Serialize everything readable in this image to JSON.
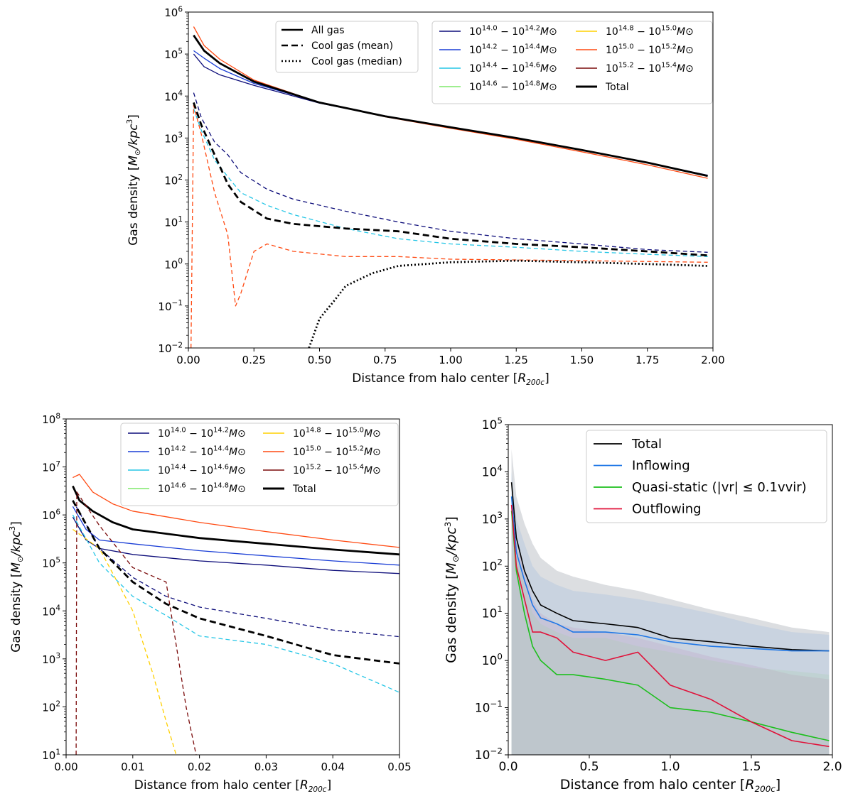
{
  "chart_data": [
    {
      "type": "line",
      "title": "",
      "xlabel": "Distance from halo center [R200c]",
      "ylabel": "Gas density [M⊙/kpc³]",
      "xlim": [
        0.0,
        2.0
      ],
      "ylim": [
        0.01,
        1000000
      ],
      "yscale": "log",
      "xticks": [
        "0.00",
        "0.25",
        "0.50",
        "0.75",
        "1.00",
        "1.25",
        "1.50",
        "1.75",
        "2.00"
      ],
      "yticks": [
        "10−2",
        "10−1",
        "100",
        "101",
        "102",
        "103",
        "104",
        "105",
        "106"
      ],
      "style_legend": [
        {
          "label": "All gas",
          "dash": "solid"
        },
        {
          "label": "Cool gas (mean)",
          "dash": "dashed"
        },
        {
          "label": "Cool gas (median)",
          "dash": "dotted"
        }
      ],
      "legend": [
        {
          "label": "10^14.0 − 10^14.2 M⊙",
          "color": "#0d0d7a"
        },
        {
          "label": "10^14.2 − 10^14.4 M⊙",
          "color": "#1a3ed6"
        },
        {
          "label": "10^14.4 − 10^14.6 M⊙",
          "color": "#25c6e6"
        },
        {
          "label": "10^14.6 − 10^14.8 M⊙",
          "color": "#7fe86a"
        },
        {
          "label": "10^14.8 − 10^15.0 M⊙",
          "color": "#ffd000"
        },
        {
          "label": "10^15.0 − 10^15.2 M⊙",
          "color": "#ff4a12"
        },
        {
          "label": "10^15.2 − 10^15.4 M⊙",
          "color": "#7a0a0a"
        },
        {
          "label": "Total",
          "color": "#000000",
          "thick": true
        }
      ],
      "series": [
        {
          "name": "all 14.0-14.2",
          "color": "#0d0d7a",
          "dash": "solid",
          "x": [
            0.02,
            0.06,
            0.12,
            0.25,
            0.5,
            0.75,
            1.0,
            1.25,
            1.5,
            1.75,
            1.98
          ],
          "y": [
            100000,
            50000,
            32000,
            18000,
            6800,
            3300,
            1800,
            1000,
            520,
            260,
            130
          ]
        },
        {
          "name": "all 14.2-14.4",
          "color": "#1a3ed6",
          "dash": "solid",
          "x": [
            0.02,
            0.06,
            0.12,
            0.25,
            0.5,
            0.75,
            1.0,
            1.25,
            1.5,
            1.75,
            1.98
          ],
          "y": [
            120000,
            80000,
            45000,
            20000,
            7000,
            3300,
            1800,
            1000,
            520,
            260,
            125
          ]
        },
        {
          "name": "all 15.0-15.2",
          "color": "#ff4a12",
          "dash": "solid",
          "x": [
            0.02,
            0.06,
            0.12,
            0.25,
            0.5,
            0.75,
            1.0,
            1.25,
            1.5,
            1.75,
            1.98
          ],
          "y": [
            450000,
            160000,
            75000,
            24000,
            7000,
            3200,
            1700,
            930,
            470,
            230,
            110
          ]
        },
        {
          "name": "all total",
          "color": "#000000",
          "dash": "solid",
          "thick": true,
          "x": [
            0.02,
            0.06,
            0.12,
            0.25,
            0.5,
            0.75,
            1.0,
            1.25,
            1.5,
            1.75,
            1.98
          ],
          "y": [
            280000,
            120000,
            60000,
            22000,
            7000,
            3300,
            1800,
            1000,
            520,
            260,
            125
          ]
        },
        {
          "name": "cool mean 14.0-14.2",
          "color": "#0d0d7a",
          "dash": "dashed",
          "x": [
            0.02,
            0.05,
            0.1,
            0.15,
            0.2,
            0.3,
            0.4,
            0.6,
            0.8,
            1.0,
            1.25,
            1.5,
            1.75,
            1.98
          ],
          "y": [
            12000,
            3000,
            800,
            400,
            150,
            60,
            35,
            18,
            10,
            6,
            4,
            3,
            2.2,
            1.9
          ]
        },
        {
          "name": "cool mean 14.4-14.6",
          "color": "#25c6e6",
          "dash": "dashed",
          "x": [
            0.02,
            0.05,
            0.1,
            0.15,
            0.2,
            0.3,
            0.4,
            0.6,
            0.8,
            1.0,
            1.25,
            1.5,
            1.75,
            1.98
          ],
          "y": [
            5000,
            1500,
            300,
            120,
            50,
            25,
            15,
            7,
            4,
            3,
            2.5,
            2,
            1.7,
            1.5
          ]
        },
        {
          "name": "cool mean 15.0-15.2",
          "color": "#ff4a12",
          "dash": "dashed",
          "x": [
            0.01,
            0.02,
            0.05,
            0.1,
            0.15,
            0.18,
            0.2,
            0.25,
            0.3,
            0.4,
            0.6,
            0.8,
            1.0,
            1.5,
            1.98
          ],
          "y": [
            0.01,
            6000,
            1200,
            50,
            5,
            0.1,
            0.2,
            2,
            3,
            2,
            1.5,
            1.5,
            1.3,
            1.2,
            1.1
          ]
        },
        {
          "name": "cool mean total",
          "color": "#000000",
          "dash": "dashed",
          "thick": true,
          "x": [
            0.02,
            0.05,
            0.1,
            0.15,
            0.2,
            0.3,
            0.4,
            0.6,
            0.8,
            1.0,
            1.25,
            1.5,
            1.75,
            1.98
          ],
          "y": [
            7000,
            2000,
            400,
            80,
            30,
            12,
            9,
            7,
            6,
            4,
            3,
            2.5,
            2,
            1.6
          ]
        },
        {
          "name": "cool median total",
          "color": "#000000",
          "dash": "dotted",
          "thick": true,
          "x": [
            0.46,
            0.5,
            0.55,
            0.6,
            0.7,
            0.8,
            1.0,
            1.25,
            1.5,
            1.75,
            1.98
          ],
          "y": [
            0.01,
            0.05,
            0.12,
            0.3,
            0.6,
            0.9,
            1.1,
            1.2,
            1.1,
            1.0,
            0.9
          ]
        }
      ]
    },
    {
      "type": "line",
      "title": "",
      "xlabel": "Distance from halo center [R200c]",
      "ylabel": "Gas density [M⊙/kpc³]",
      "xlim": [
        0.0,
        0.05
      ],
      "ylim": [
        10,
        100000000
      ],
      "yscale": "log",
      "xticks": [
        "0.00",
        "0.01",
        "0.02",
        "0.03",
        "0.04",
        "0.05"
      ],
      "yticks": [
        "101",
        "102",
        "103",
        "104",
        "105",
        "106",
        "107",
        "108"
      ],
      "legend": [
        {
          "label": "10^14.0 − 10^14.2 M⊙",
          "color": "#0d0d7a"
        },
        {
          "label": "10^14.2 − 10^14.4 M⊙",
          "color": "#1a3ed6"
        },
        {
          "label": "10^14.4 − 10^14.6 M⊙",
          "color": "#25c6e6"
        },
        {
          "label": "10^14.6 − 10^14.8 M⊙",
          "color": "#7fe86a"
        },
        {
          "label": "10^14.8 − 10^15.0 M⊙",
          "color": "#ffd000"
        },
        {
          "label": "10^15.0 − 10^15.2 M⊙",
          "color": "#ff4a12"
        },
        {
          "label": "10^15.2 − 10^15.4 M⊙",
          "color": "#7a0a0a"
        },
        {
          "label": "Total",
          "color": "#000000",
          "thick": true
        }
      ],
      "series": [
        {
          "name": "all 15.0-15.2",
          "color": "#ff4a12",
          "dash": "solid",
          "x": [
            0.001,
            0.002,
            0.004,
            0.007,
            0.01,
            0.02,
            0.03,
            0.04,
            0.05
          ],
          "y": [
            6000000,
            7000000,
            3000000,
            1700000,
            1200000,
            700000,
            450000,
            300000,
            210000
          ]
        },
        {
          "name": "all total",
          "color": "#000000",
          "dash": "solid",
          "thick": true,
          "x": [
            0.001,
            0.002,
            0.004,
            0.007,
            0.01,
            0.02,
            0.03,
            0.04,
            0.05
          ],
          "y": [
            4000000,
            2000000,
            1200000,
            700000,
            500000,
            330000,
            250000,
            190000,
            150000
          ]
        },
        {
          "name": "all 14.2-14.4",
          "color": "#1a3ed6",
          "dash": "solid",
          "x": [
            0.001,
            0.003,
            0.005,
            0.01,
            0.02,
            0.03,
            0.04,
            0.05
          ],
          "y": [
            1500000,
            500000,
            300000,
            250000,
            180000,
            140000,
            110000,
            90000
          ]
        },
        {
          "name": "all 14.0-14.2",
          "color": "#0d0d7a",
          "dash": "solid",
          "x": [
            0.001,
            0.003,
            0.005,
            0.01,
            0.02,
            0.03,
            0.04,
            0.05
          ],
          "y": [
            900000,
            300000,
            200000,
            150000,
            110000,
            90000,
            70000,
            60000
          ]
        },
        {
          "name": "cool 14.0-14.2",
          "color": "#0d0d7a",
          "dash": "dashed",
          "x": [
            0.001,
            0.005,
            0.01,
            0.015,
            0.02,
            0.03,
            0.04,
            0.05
          ],
          "y": [
            2000000,
            200000,
            50000,
            20000,
            12000,
            7000,
            4000,
            2900
          ]
        },
        {
          "name": "cool 14.4-14.6",
          "color": "#25c6e6",
          "dash": "dashed",
          "x": [
            0.001,
            0.005,
            0.01,
            0.015,
            0.02,
            0.03,
            0.04,
            0.05
          ],
          "y": [
            1000000,
            100000,
            20000,
            8000,
            3000,
            2000,
            800,
            200
          ]
        },
        {
          "name": "cool 14.8-15.0",
          "color": "#ffd000",
          "dash": "dashed",
          "x": [
            0.001,
            0.005,
            0.01,
            0.013,
            0.015,
            0.0165
          ],
          "y": [
            500000,
            200000,
            10000,
            500,
            50,
            10
          ]
        },
        {
          "name": "cool 15.2-15.4",
          "color": "#7a0a0a",
          "dash": "dashed",
          "x": [
            0.0015,
            0.0016,
            0.005,
            0.01,
            0.015,
            0.018,
            0.0195
          ],
          "y": [
            10,
            3000000,
            600000,
            80000,
            40000,
            100,
            10
          ]
        },
        {
          "name": "cool total",
          "color": "#000000",
          "dash": "dashed",
          "thick": true,
          "x": [
            0.001,
            0.005,
            0.01,
            0.015,
            0.02,
            0.03,
            0.04,
            0.05
          ],
          "y": [
            2000000,
            200000,
            40000,
            14000,
            7000,
            3000,
            1200,
            800
          ]
        }
      ]
    },
    {
      "type": "line",
      "title": "",
      "xlabel": "Distance from halo center [R200c]",
      "ylabel": "Gas density [M⊙/kpc³]",
      "xlim": [
        0.0,
        2.0
      ],
      "ylim": [
        0.01,
        100000
      ],
      "yscale": "log",
      "xticks": [
        "0.0",
        "0.5",
        "1.0",
        "1.5",
        "2.0"
      ],
      "yticks": [
        "10−2",
        "10−1",
        "100",
        "101",
        "102",
        "103",
        "104",
        "105"
      ],
      "legend": [
        {
          "label": "Total",
          "color": "#000000"
        },
        {
          "label": "Inflowing",
          "color": "#1f77e6"
        },
        {
          "label": "Quasi-static (|vr| ≤ 0.1vvir)",
          "color": "#1dbf1d"
        },
        {
          "label": "Outflowing",
          "color": "#e0123a"
        }
      ],
      "series": [
        {
          "name": "Total",
          "color": "#000000",
          "x": [
            0.02,
            0.05,
            0.1,
            0.15,
            0.2,
            0.3,
            0.4,
            0.6,
            0.8,
            1.0,
            1.25,
            1.5,
            1.75,
            1.98
          ],
          "y": [
            6000,
            400,
            80,
            30,
            15,
            10,
            7,
            6,
            5,
            3,
            2.5,
            2,
            1.7,
            1.6
          ]
        },
        {
          "name": "Inflowing",
          "color": "#1f77e6",
          "x": [
            0.02,
            0.05,
            0.1,
            0.15,
            0.2,
            0.3,
            0.4,
            0.6,
            0.8,
            1.0,
            1.25,
            1.5,
            1.75,
            1.98
          ],
          "y": [
            3000,
            200,
            50,
            15,
            8,
            6,
            4,
            4,
            3.5,
            2.5,
            2,
            1.8,
            1.6,
            1.6
          ]
        },
        {
          "name": "Quasi-static",
          "color": "#1dbf1d",
          "x": [
            0.02,
            0.05,
            0.1,
            0.15,
            0.2,
            0.3,
            0.4,
            0.6,
            0.8,
            1.0,
            1.25,
            1.5,
            1.75,
            1.98
          ],
          "y": [
            1500,
            80,
            10,
            2,
            1,
            0.5,
            0.5,
            0.4,
            0.3,
            0.1,
            0.08,
            0.05,
            0.03,
            0.02
          ]
        },
        {
          "name": "Outflowing",
          "color": "#e0123a",
          "x": [
            0.02,
            0.05,
            0.1,
            0.15,
            0.2,
            0.3,
            0.4,
            0.6,
            0.8,
            1.0,
            1.25,
            1.5,
            1.75,
            1.98
          ],
          "y": [
            2000,
            100,
            20,
            4,
            4,
            3,
            1.5,
            1,
            1.5,
            0.3,
            0.15,
            0.05,
            0.02,
            0.015
          ]
        }
      ]
    }
  ]
}
